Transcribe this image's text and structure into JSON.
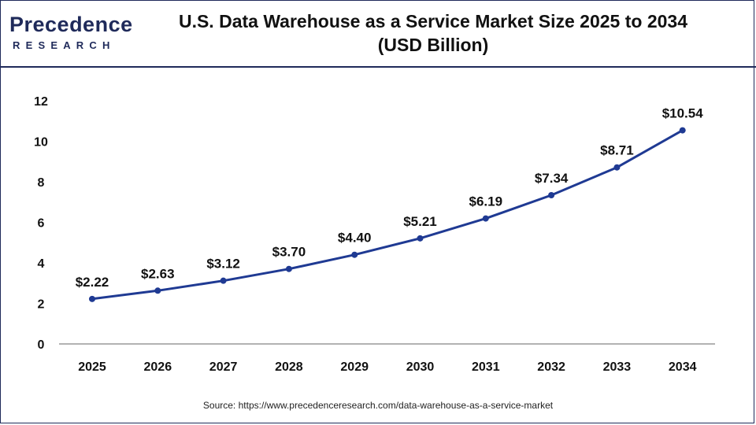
{
  "header": {
    "logo": {
      "word": "Precedence",
      "sub": "RESEARCH"
    },
    "title_line1": "U.S. Data Warehouse as a Service Market Size 2025 to 2034",
    "title_line2": "(USD Billion)"
  },
  "source": "Source: https://www.precedenceresearch.com/data-warehouse-as-a-service-market",
  "colors": {
    "line": "#1f3a93",
    "point": "#1f3a93",
    "border": "#1f2a5a",
    "axis": "#999999"
  },
  "chart_data": {
    "type": "line",
    "title": "U.S. Data Warehouse as a Service Market Size 2025 to 2034 (USD Billion)",
    "xlabel": "",
    "ylabel": "",
    "categories": [
      "2025",
      "2026",
      "2027",
      "2028",
      "2029",
      "2030",
      "2031",
      "2032",
      "2033",
      "2034"
    ],
    "series": [
      {
        "values": [
          2.22,
          2.63,
          3.12,
          3.7,
          4.4,
          5.21,
          6.19,
          7.34,
          8.71,
          10.54
        ],
        "labels": [
          "$2.22",
          "$2.63",
          "$3.12",
          "$3.70",
          "$4.40",
          "$5.21",
          "$6.19",
          "$7.34",
          "$8.71",
          "$10.54"
        ]
      }
    ],
    "ylim": [
      0,
      12
    ],
    "yticks": [
      "0",
      "2",
      "4",
      "6",
      "8",
      "10",
      "12"
    ],
    "grid": false,
    "legend": "none"
  }
}
